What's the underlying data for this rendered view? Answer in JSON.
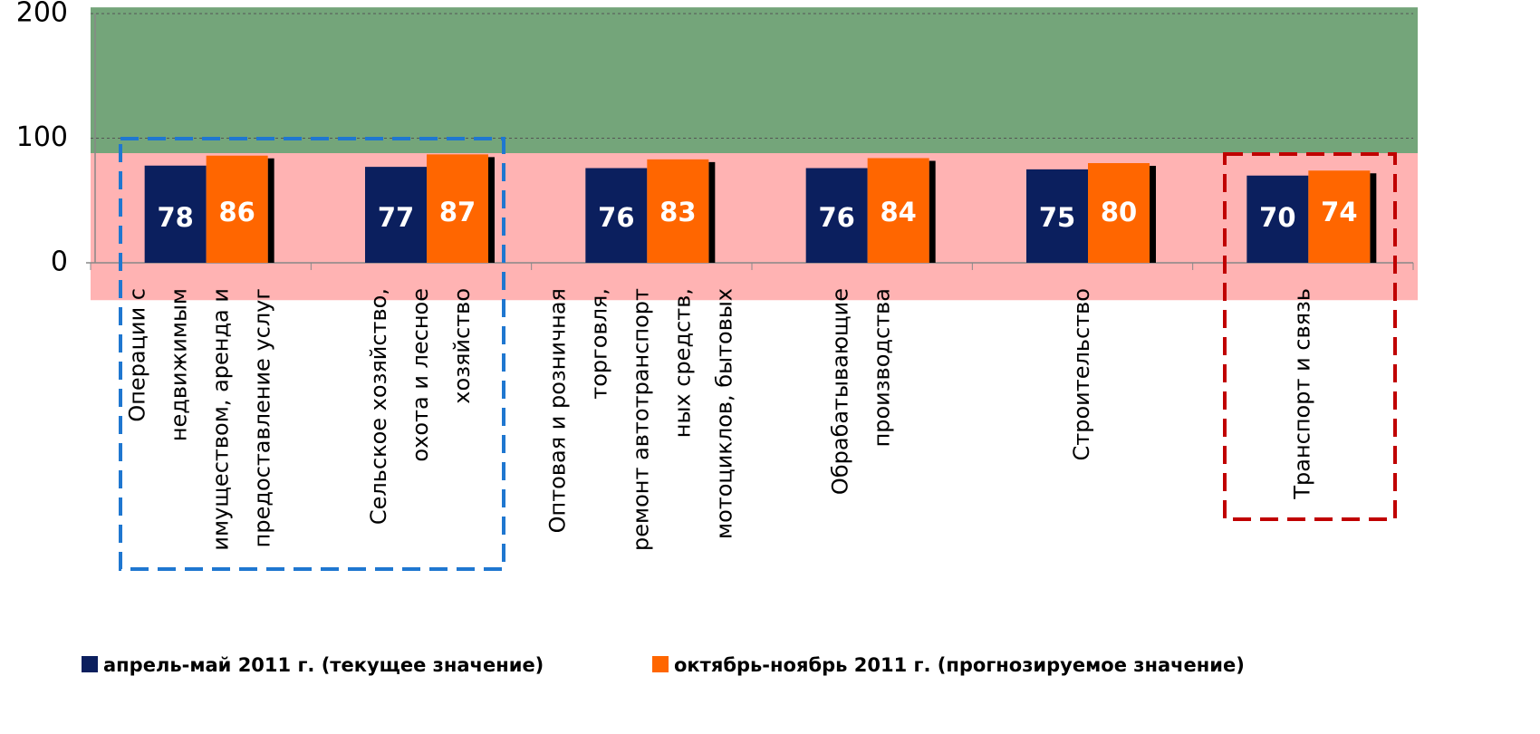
{
  "chart_data": {
    "type": "bar",
    "categories": [
      "Операции с\nнедвижимым\nимуществом, аренда и\nпредоставление услуг",
      "Сельское хозяйство,\nохота и лесное\nхозяйство",
      "Оптовая и розничная\nторговля,\nремонт автотранспорт\nных средств,\nмотоциклов, бытовых",
      "Обрабатывающие\nпроизводства",
      "Строительство",
      "Транспорт и связь"
    ],
    "series": [
      {
        "name": "апрель-май 2011 г. (текущее значение)",
        "color": "#0b1f5e",
        "values": [
          78,
          77,
          76,
          76,
          75,
          70
        ]
      },
      {
        "name": "октябрь-ноябрь 2011 г. (прогнозируемое значение)",
        "color": "#ff6600",
        "values": [
          86,
          87,
          83,
          84,
          80,
          74
        ]
      }
    ],
    "ylim": [
      0,
      200
    ],
    "yticks": [
      0,
      100,
      200
    ],
    "grid": true,
    "bands": [
      {
        "from": 88,
        "to": 205,
        "color": "#74a57a"
      },
      {
        "from": -30,
        "to": 88,
        "color": "#ffb3b3"
      }
    ]
  }
}
